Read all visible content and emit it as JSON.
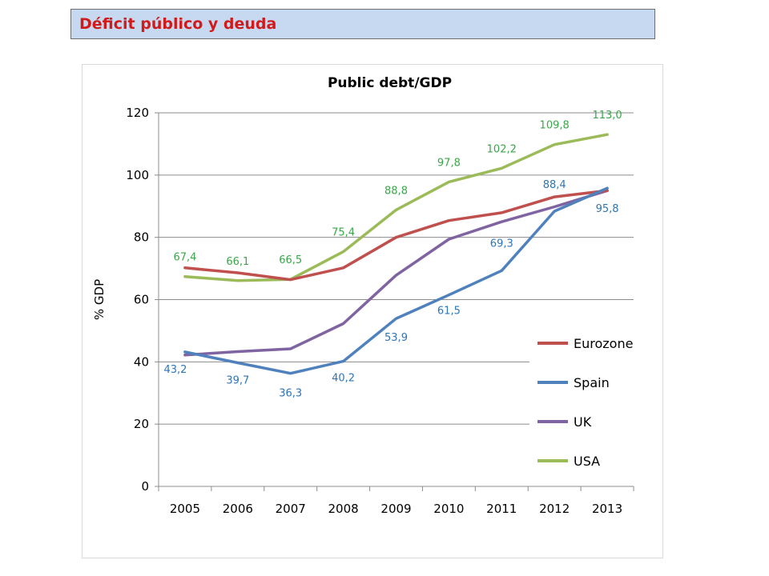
{
  "header": {
    "title": "Déficit público y deuda"
  },
  "chart_data": {
    "type": "line",
    "title": "Public debt/GDP",
    "xlabel": "",
    "ylabel": "% GDP",
    "categories": [
      "2005",
      "2006",
      "2007",
      "2008",
      "2009",
      "2010",
      "2011",
      "2012",
      "2013"
    ],
    "ylim": [
      0,
      120
    ],
    "yticks": [
      0,
      20,
      40,
      60,
      80,
      100,
      120
    ],
    "grid": "horizontal",
    "legend_position": "right-bottom",
    "series": [
      {
        "name": "Eurozone",
        "color": "#c0504d",
        "values": [
          70.2,
          68.6,
          66.4,
          70.2,
          80.0,
          85.4,
          87.9,
          93.0,
          95.0
        ],
        "labels": []
      },
      {
        "name": "Spain",
        "color": "#4f81bd",
        "values": [
          43.2,
          39.7,
          36.3,
          40.2,
          53.9,
          61.5,
          69.3,
          88.4,
          95.8
        ],
        "labels": [
          "43,2",
          "39,7",
          "36,3",
          "40,2",
          "53,9",
          "61,5",
          "69,3",
          "88,4",
          "95,8"
        ]
      },
      {
        "name": "UK",
        "color": "#8064a2",
        "values": [
          42.2,
          43.3,
          44.2,
          52.3,
          67.8,
          79.4,
          85.0,
          89.8,
          95.0
        ],
        "labels": []
      },
      {
        "name": "USA",
        "color": "#9bbb59",
        "values": [
          67.4,
          66.1,
          66.5,
          75.4,
          88.8,
          97.8,
          102.2,
          109.8,
          113.0
        ],
        "labels": [
          "67,4",
          "66,1",
          "66,5",
          "75,4",
          "88,8",
          "97,8",
          "102,2",
          "109,8",
          "113,0"
        ]
      }
    ]
  }
}
